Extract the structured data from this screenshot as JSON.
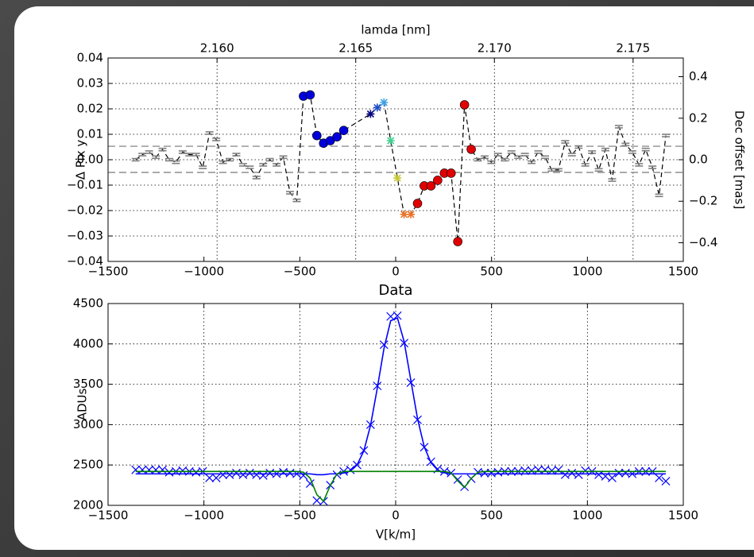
{
  "chart_data": [
    {
      "type": "line",
      "x2label": "lamda [nm]",
      "ylabel": "Δ Pix y",
      "y2label": "Dec offset [mas]",
      "xlim": [
        -1500,
        1500
      ],
      "xticks": [
        {
          "value": -1500,
          "label": "−1500"
        },
        {
          "value": -1000,
          "label": "−1000"
        },
        {
          "value": -500,
          "label": "−500"
        },
        0,
        500,
        1000,
        1500
      ],
      "x2lim": [
        2.15607,
        2.17681
      ],
      "x2ticks": [
        {
          "value": 2.16,
          "label": "2.160"
        },
        2.165,
        {
          "value": 2.17,
          "label": "2.170"
        },
        2.175
      ],
      "ylim": [
        -0.04,
        0.04
      ],
      "yticks": [
        {
          "value": -0.04,
          "label": "−0.04"
        },
        {
          "value": -0.03,
          "label": "−0.03"
        },
        {
          "value": -0.02,
          "label": "−0.02"
        },
        {
          "value": -0.01,
          "label": "−0.01"
        },
        {
          "value": 0,
          "label": "0.00"
        },
        0.01,
        0.02,
        0.03,
        0.04
      ],
      "y2lim": [
        -0.49,
        0.49
      ],
      "y2ticks": [
        {
          "value": -0.4,
          "label": "−0.4"
        },
        {
          "value": -0.2,
          "label": "−0.2"
        },
        {
          "value": 0,
          "label": "0.0"
        },
        0.2,
        0.4
      ],
      "grid": true,
      "hlines": [
        0.0053,
        -0.005
      ],
      "hline_color": "#777777",
      "x": [
        -1356,
        -1321,
        -1286,
        -1251,
        -1216,
        -1181,
        -1146,
        -1111,
        -1076,
        -1041,
        -1006,
        -971,
        -936,
        -901,
        -866,
        -831,
        -796,
        -761,
        -726,
        -691,
        -656,
        -621,
        -586,
        -551,
        -516,
        -481,
        -446,
        -411,
        -376,
        -341,
        -306,
        -271,
        -131,
        -96,
        -61,
        -26,
        9,
        44,
        79,
        114,
        149,
        184,
        219,
        254,
        289,
        324,
        359,
        394,
        429,
        464,
        499,
        534,
        569,
        604,
        639,
        674,
        709,
        744,
        779,
        814,
        849,
        884,
        919,
        954,
        989,
        1024,
        1059,
        1094,
        1129,
        1164,
        1199,
        1234,
        1269,
        1304,
        1339,
        1374,
        1409
      ],
      "series": [
        {
          "color": "#000000",
          "linestyle": "dashed",
          "values": [
            0,
            0.002,
            0.003,
            0.001,
            0.004,
            0,
            -0.001,
            0.003,
            0.002,
            0.002,
            -0.003,
            0.0105,
            0.008,
            -0.001,
            0,
            0.002,
            -0.002,
            -0.003,
            -0.007,
            -0.002,
            0,
            -0.002,
            0.001,
            -0.013,
            -0.016,
            0.025,
            0.0255,
            0.0095,
            0.0065,
            0.0075,
            0.009,
            0.0115,
            0.018,
            0.0205,
            0.0225,
            0.0075,
            -0.0072,
            -0.0215,
            -0.0215,
            -0.0172,
            -0.0103,
            -0.0103,
            -0.0081,
            -0.0053,
            -0.0053,
            -0.0322,
            0.0216,
            0.0041,
            0,
            0.001,
            -0.001,
            0.002,
            0,
            0.003,
            0.001,
            0.002,
            -0.001,
            0.003,
            0.001,
            -0.004,
            -0.004,
            0.007,
            0.002,
            0.005,
            -0.002,
            0.003,
            -0.004,
            0.004,
            -0.008,
            0.013,
            0.006,
            0.003,
            -0.002,
            0.004,
            -0.003,
            -0.014,
            0.0095
          ],
          "markers": [
            "dash",
            "dash",
            "dash",
            "dash",
            "dash",
            "dash",
            "dash",
            "dash",
            "dash",
            "dash",
            "dash",
            "dash",
            "dash",
            "dash",
            "dash",
            "dash",
            "dash",
            "dash",
            "dash",
            "dash",
            "dash",
            "dash",
            "dash",
            "dash",
            "dash",
            "circle",
            "circle",
            "circle",
            "circle",
            "circle",
            "circle",
            "circle",
            "star",
            "star",
            "star",
            "star",
            "star",
            "star",
            "star",
            "circle",
            "circle",
            "circle",
            "circle",
            "circle",
            "circle",
            "circle",
            "circle",
            "circle",
            "dash",
            "dash",
            "dash",
            "dash",
            "dash",
            "dash",
            "dash",
            "dash",
            "dash",
            "dash",
            "dash",
            "dash",
            "dash",
            "dash",
            "dash",
            "dash",
            "dash",
            "dash",
            "dash",
            "dash",
            "dash",
            "dash",
            "dash",
            "dash",
            "dash",
            "dash",
            "dash",
            "dash",
            "dash"
          ],
          "marker_colors": [
            "#808080",
            "#808080",
            "#808080",
            "#808080",
            "#808080",
            "#808080",
            "#808080",
            "#808080",
            "#808080",
            "#808080",
            "#808080",
            "#808080",
            "#808080",
            "#808080",
            "#808080",
            "#808080",
            "#808080",
            "#808080",
            "#808080",
            "#808080",
            "#808080",
            "#808080",
            "#808080",
            "#808080",
            "#808080",
            "#0000dd",
            "#0000dd",
            "#0000dd",
            "#0000dd",
            "#0000dd",
            "#0000dd",
            "#0000dd",
            "#000080",
            "#1e50c8",
            "#3ca0e6",
            "#40d090",
            "#c8c832",
            "#e8742a",
            "#e8742a",
            "#e00000",
            "#e00000",
            "#e00000",
            "#e00000",
            "#e00000",
            "#e00000",
            "#e00000",
            "#e00000",
            "#e00000",
            "#808080",
            "#808080",
            "#808080",
            "#808080",
            "#808080",
            "#808080",
            "#808080",
            "#808080",
            "#808080",
            "#808080",
            "#808080",
            "#808080",
            "#808080",
            "#808080",
            "#808080",
            "#808080",
            "#808080",
            "#808080",
            "#808080",
            "#808080",
            "#808080",
            "#808080",
            "#808080",
            "#808080",
            "#808080",
            "#808080",
            "#808080",
            "#808080",
            "#808080"
          ]
        }
      ]
    },
    {
      "type": "line",
      "title": "Data",
      "xlabel": "V[k/m]",
      "ylabel": "ADUs",
      "xlim": [
        -1500,
        1500
      ],
      "xticks": [
        {
          "value": -1500,
          "label": "−1500"
        },
        {
          "value": -1000,
          "label": "−1000"
        },
        {
          "value": -500,
          "label": "−500"
        },
        0,
        500,
        1000,
        1500
      ],
      "ylim": [
        2000,
        4500
      ],
      "yticks": [
        2000,
        2500,
        3000,
        3500,
        4000,
        4500
      ],
      "grid": true,
      "x": [
        -1356,
        -1321,
        -1286,
        -1251,
        -1216,
        -1181,
        -1146,
        -1111,
        -1076,
        -1041,
        -1006,
        -971,
        -936,
        -901,
        -866,
        -831,
        -796,
        -761,
        -726,
        -691,
        -656,
        -621,
        -586,
        -551,
        -516,
        -481,
        -446,
        -411,
        -376,
        -341,
        -306,
        -271,
        -236,
        -201,
        -166,
        -131,
        -96,
        -61,
        -26,
        9,
        44,
        79,
        114,
        149,
        184,
        219,
        254,
        289,
        324,
        359,
        394,
        429,
        464,
        499,
        534,
        569,
        604,
        639,
        674,
        709,
        744,
        779,
        814,
        849,
        884,
        919,
        954,
        989,
        1024,
        1059,
        1094,
        1129,
        1164,
        1199,
        1234,
        1269,
        1304,
        1339,
        1374,
        1409
      ],
      "series": [
        {
          "color": "#0000ff",
          "linestyle": "none",
          "marker": "x",
          "values": [
            2440,
            2440,
            2440,
            2440,
            2440,
            2410,
            2420,
            2430,
            2420,
            2410,
            2420,
            2340,
            2340,
            2380,
            2380,
            2400,
            2380,
            2400,
            2380,
            2370,
            2400,
            2390,
            2410,
            2400,
            2390,
            2370,
            2270,
            2060,
            2050,
            2250,
            2380,
            2420,
            2440,
            2500,
            2680,
            3000,
            3480,
            3990,
            4340,
            4350,
            4010,
            3520,
            3060,
            2720,
            2540,
            2450,
            2420,
            2400,
            2320,
            2230,
            2330,
            2410,
            2400,
            2400,
            2410,
            2420,
            2420,
            2420,
            2430,
            2430,
            2440,
            2440,
            2430,
            2440,
            2380,
            2400,
            2380,
            2430,
            2420,
            2380,
            2360,
            2340,
            2400,
            2400,
            2390,
            2420,
            2420,
            2420,
            2340,
            2300
          ]
        },
        {
          "color": "#0000ff",
          "linestyle": "solid",
          "values": [
            2390,
            2390,
            2390,
            2390,
            2390,
            2390,
            2390,
            2390,
            2390,
            2390,
            2390,
            2390,
            2390,
            2390,
            2390,
            2390,
            2390,
            2390,
            2390,
            2390,
            2390,
            2390,
            2390,
            2390,
            2390,
            2390,
            2390,
            2380,
            2380,
            2390,
            2390,
            2400,
            2427,
            2502,
            2675,
            2992,
            3449,
            3943,
            4287,
            4322,
            4030,
            3550,
            3074,
            2726,
            2528,
            2437,
            2403,
            2390,
            2390,
            2390,
            2390,
            2390,
            2390,
            2390,
            2390,
            2390,
            2390,
            2390,
            2390,
            2390,
            2390,
            2390,
            2390,
            2390,
            2390,
            2390,
            2390,
            2390,
            2390,
            2390,
            2390,
            2390,
            2390,
            2390,
            2390,
            2390,
            2390,
            2390,
            2390,
            2390
          ]
        },
        {
          "color": "#008000",
          "linestyle": "solid",
          "values": [
            2420,
            2420,
            2420,
            2420,
            2420,
            2420,
            2420,
            2420,
            2420,
            2420,
            2420,
            2420,
            2420,
            2420,
            2420,
            2420,
            2420,
            2420,
            2420,
            2420,
            2420,
            2420,
            2420,
            2420,
            2420,
            2411,
            2337,
            2132,
            2052,
            2248,
            2390,
            2420,
            2420,
            2420,
            2420,
            2420,
            2420,
            2420,
            2420,
            2420,
            2420,
            2420,
            2420,
            2420,
            2420,
            2420,
            2420,
            2402,
            2303,
            2222,
            2334,
            2410,
            2420,
            2420,
            2420,
            2420,
            2420,
            2420,
            2420,
            2420,
            2420,
            2420,
            2420,
            2420,
            2420,
            2420,
            2420,
            2420,
            2420,
            2420,
            2420,
            2420,
            2420,
            2420,
            2420,
            2420,
            2420,
            2420,
            2420,
            2420
          ]
        }
      ]
    }
  ]
}
